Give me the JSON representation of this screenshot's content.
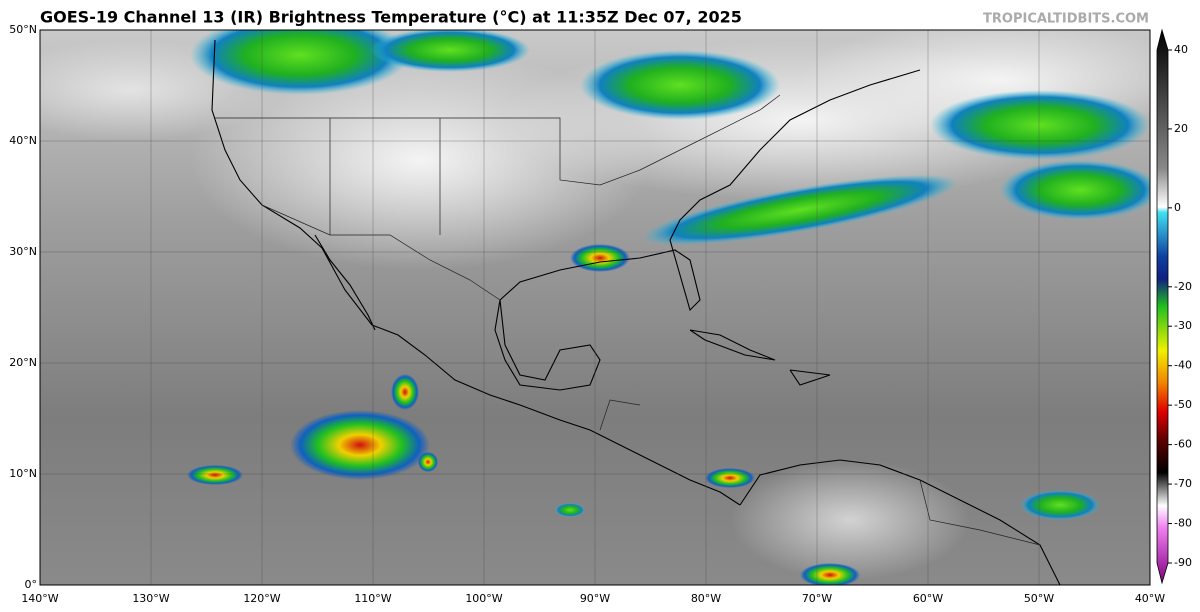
{
  "header": {
    "title": "GOES-19 Channel 13 (IR) Brightness Temperature (°C) at 11:35Z Dec 07, 2025",
    "credit": "TROPICALTIDBITS.COM"
  },
  "map": {
    "lat_labels": [
      {
        "value": 50,
        "label": "50°N"
      },
      {
        "value": 40,
        "label": "40°N"
      },
      {
        "value": 30,
        "label": "30°N"
      },
      {
        "value": 20,
        "label": "20°N"
      },
      {
        "value": 10,
        "label": "10°N"
      },
      {
        "value": 0,
        "label": "0°"
      }
    ],
    "lon_labels": [
      {
        "value": -140,
        "label": "140°W"
      },
      {
        "value": -130,
        "label": "130°W"
      },
      {
        "value": -120,
        "label": "120°W"
      },
      {
        "value": -110,
        "label": "110°W"
      },
      {
        "value": -100,
        "label": "100°W"
      },
      {
        "value": -90,
        "label": "90°W"
      },
      {
        "value": -80,
        "label": "80°W"
      },
      {
        "value": -70,
        "label": "70°W"
      },
      {
        "value": -60,
        "label": "60°W"
      },
      {
        "value": -50,
        "label": "50°W"
      },
      {
        "value": -40,
        "label": "40°W"
      }
    ]
  },
  "colorbar": {
    "ticks": [
      40,
      20,
      0,
      -20,
      -30,
      -40,
      -50,
      -60,
      -70,
      -80,
      -90
    ]
  }
}
